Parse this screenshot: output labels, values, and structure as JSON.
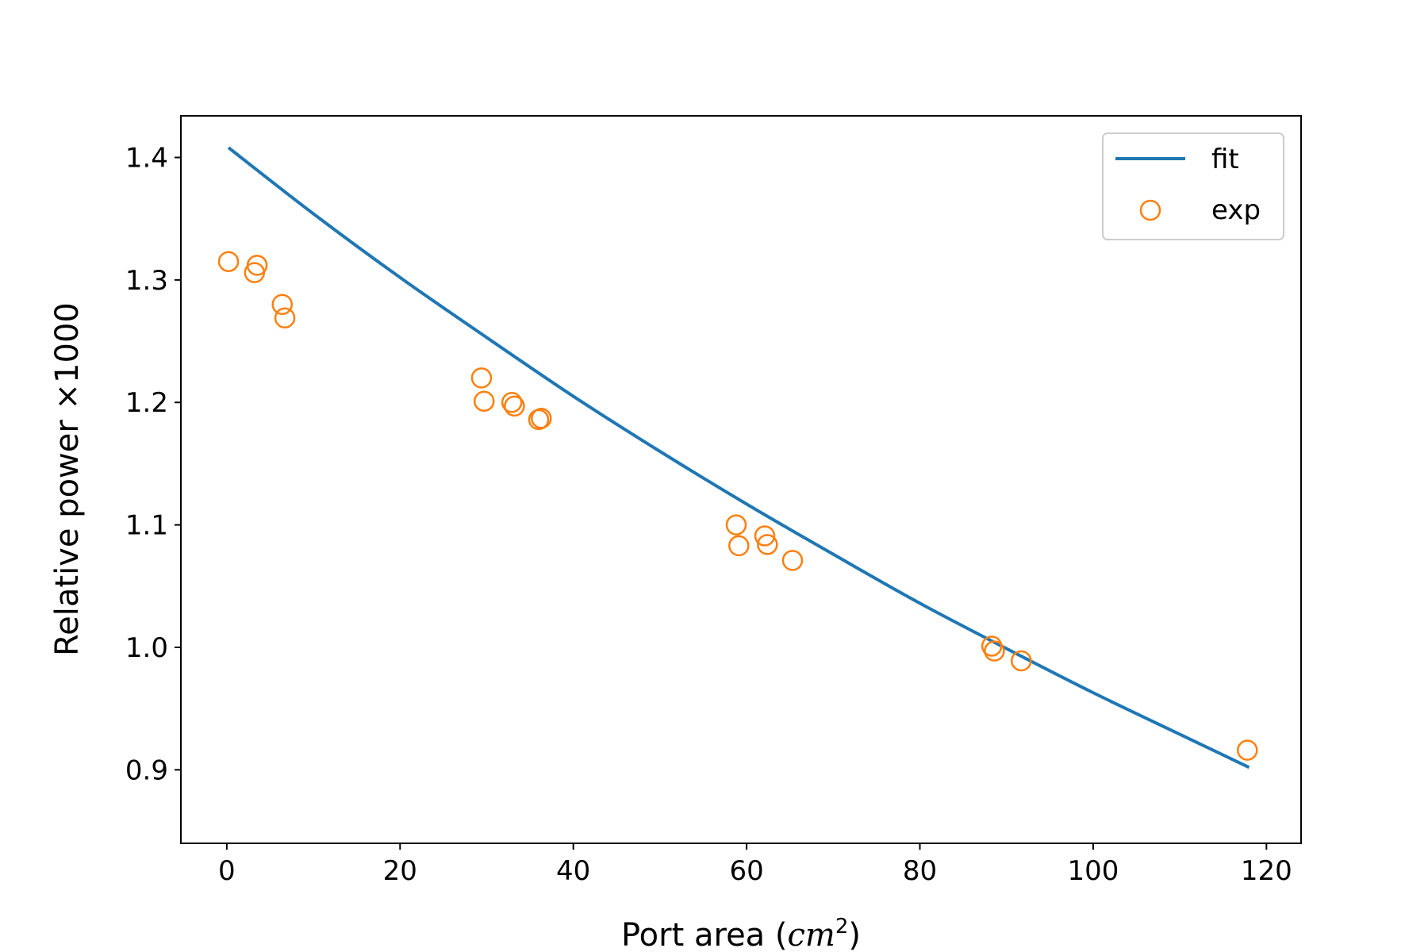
{
  "chart_data": {
    "type": "scatter",
    "xlabel": {
      "prefix": "Port area (",
      "math": "cm",
      "sup": "2",
      "suffix": ")"
    },
    "ylabel": "Relative power ×1000",
    "xlim": [
      -5.3,
      124
    ],
    "ylim": [
      0.84,
      1.434
    ],
    "xticks": [
      0,
      20,
      40,
      60,
      80,
      100,
      120
    ],
    "yticks": [
      0.9,
      1.0,
      1.1,
      1.2,
      1.3,
      1.4
    ],
    "xtick_labels": [
      "0",
      "20",
      "40",
      "60",
      "80",
      "100",
      "120"
    ],
    "ytick_labels": [
      "0.9",
      "1.0",
      "1.1",
      "1.2",
      "1.3",
      "1.4"
    ],
    "grid": false,
    "legend_position": "top-right",
    "colors": {
      "fit": "#1f77b4",
      "exp": "#ff7f0e"
    },
    "series": [
      {
        "name": "fit",
        "kind": "line",
        "x": [
          0.2,
          10,
          20,
          30,
          40,
          50,
          60,
          70,
          80,
          90,
          100,
          110,
          118
        ],
        "y": [
          1.408,
          1.354,
          1.302,
          1.253,
          1.205,
          1.16,
          1.117,
          1.076,
          1.036,
          0.999,
          0.963,
          0.929,
          0.902
        ]
      },
      {
        "name": "exp",
        "kind": "scatter",
        "x": [
          0.2,
          3.2,
          3.5,
          6.4,
          6.7,
          29.4,
          29.7,
          32.9,
          33.2,
          36.0,
          36.3,
          58.8,
          59.1,
          62.1,
          62.4,
          65.3,
          88.3,
          88.6,
          91.7,
          117.8
        ],
        "y": [
          1.315,
          1.306,
          1.312,
          1.28,
          1.269,
          1.22,
          1.201,
          1.2,
          1.197,
          1.186,
          1.187,
          1.1,
          1.083,
          1.091,
          1.084,
          1.071,
          1.001,
          0.997,
          0.989,
          0.916
        ]
      }
    ]
  }
}
